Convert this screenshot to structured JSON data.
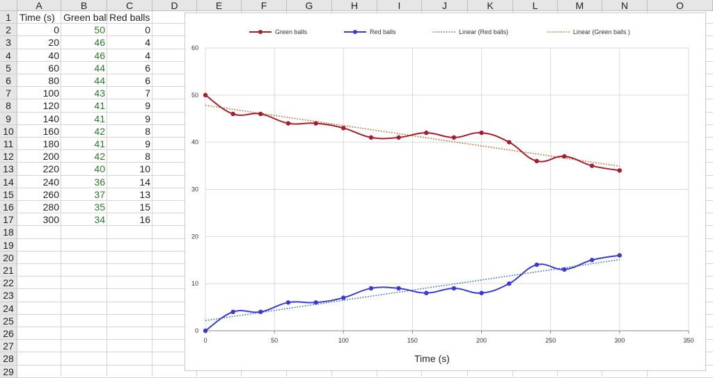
{
  "columns": [
    "A",
    "B",
    "C",
    "D",
    "E",
    "F",
    "G",
    "H",
    "I",
    "J",
    "K",
    "L",
    "M",
    "N",
    "O"
  ],
  "rows": [
    "1",
    "2",
    "3",
    "4",
    "5",
    "6",
    "7",
    "8",
    "9",
    "10",
    "11",
    "12",
    "13",
    "14",
    "15",
    "16",
    "17",
    "18",
    "19",
    "20",
    "21",
    "22",
    "23",
    "24",
    "25",
    "26",
    "27",
    "28",
    "29"
  ],
  "headers": [
    "Time (s)",
    "Green ball",
    "Red balls"
  ],
  "table": [
    [
      "0",
      "50",
      "0"
    ],
    [
      "20",
      "46",
      "4"
    ],
    [
      "40",
      "46",
      "4"
    ],
    [
      "60",
      "44",
      "6"
    ],
    [
      "80",
      "44",
      "6"
    ],
    [
      "100",
      "43",
      "7"
    ],
    [
      "120",
      "41",
      "9"
    ],
    [
      "140",
      "41",
      "9"
    ],
    [
      "160",
      "42",
      "8"
    ],
    [
      "180",
      "41",
      "9"
    ],
    [
      "200",
      "42",
      "8"
    ],
    [
      "220",
      "40",
      "10"
    ],
    [
      "240",
      "36",
      "14"
    ],
    [
      "260",
      "37",
      "13"
    ],
    [
      "280",
      "35",
      "15"
    ],
    [
      "300",
      "34",
      "16"
    ]
  ],
  "colors": {
    "green_balls": "#a31d2a",
    "red_balls": "#3a3acf",
    "trend_red": "#2f6ec8",
    "trend_green": "#c0612a"
  },
  "chart_data": {
    "type": "line",
    "x": [
      0,
      20,
      40,
      60,
      80,
      100,
      120,
      140,
      160,
      180,
      200,
      220,
      240,
      260,
      280,
      300
    ],
    "series": [
      {
        "name": "Green balls",
        "values": [
          50,
          46,
          46,
          44,
          44,
          43,
          41,
          41,
          42,
          41,
          42,
          40,
          36,
          37,
          35,
          34
        ]
      },
      {
        "name": "Red balls",
        "values": [
          0,
          4,
          4,
          6,
          6,
          7,
          9,
          9,
          8,
          9,
          8,
          10,
          14,
          13,
          15,
          16
        ]
      }
    ],
    "trendlines": [
      {
        "name": "Linear (Red balls)",
        "of": "Red balls"
      },
      {
        "name": "Linear (Green balls )",
        "of": "Green balls"
      }
    ],
    "xlabel": "Time (s)",
    "ylabel": "",
    "title": "",
    "xlim": [
      0,
      350
    ],
    "ylim": [
      0,
      60
    ],
    "xticks": [
      "0",
      "50",
      "100",
      "150",
      "200",
      "250",
      "300",
      "350"
    ],
    "yticks": [
      "0",
      "10",
      "20",
      "30",
      "40",
      "50",
      "60"
    ],
    "grid": true,
    "legend": "top"
  }
}
